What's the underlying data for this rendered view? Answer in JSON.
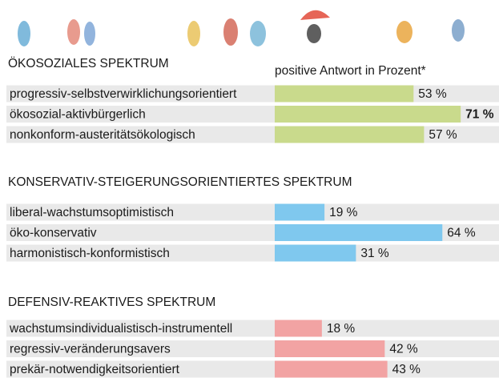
{
  "chart_data": {
    "type": "bar",
    "subtitle": "positive Antwort in Prozent*",
    "groups": [
      {
        "title": "ÖKOSOZIALES SPEKTRUM",
        "color": "#c9da8c",
        "categories": [
          "progressiv-selbstverwirklichungsorientiert",
          "ökosozial-aktivbürgerlich",
          "nonkonform-austeritätsökologisch"
        ],
        "values": [
          53,
          71,
          57
        ],
        "value_labels": [
          "53 %",
          "71 %",
          "57 %"
        ],
        "highlight": [
          1
        ]
      },
      {
        "title": "KONSERVATIV-STEIGERUNGSORIENTIERTES SPEKTRUM",
        "color": "#7fc8ee",
        "categories": [
          "liberal-wachstumsoptimistisch",
          "öko-konservativ",
          "harmonistisch-konformistisch"
        ],
        "values": [
          19,
          64,
          31
        ],
        "value_labels": [
          "19 %",
          "64 %",
          "31 %"
        ]
      },
      {
        "title": "DEFENSIV-REAKTIVES SPEKTRUM",
        "color": "#f2a3a3",
        "categories": [
          "wachstumsindividualistisch-instrumentell",
          "regressiv-veränderungsavers",
          "prekär-notwendigkeitsorientiert"
        ],
        "values": [
          18,
          42,
          43
        ],
        "value_labels": [
          "18 %",
          "42 %",
          "43 %"
        ]
      }
    ]
  }
}
